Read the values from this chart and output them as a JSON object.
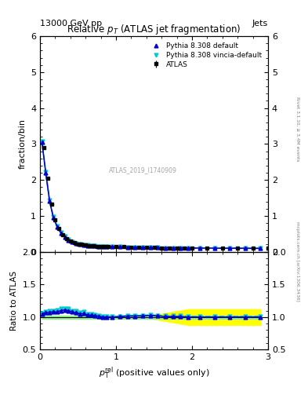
{
  "title": "Relative $p_{T}$ (ATLAS jet fragmentation)",
  "header_left": "13000 GeV pp",
  "header_right": "Jets",
  "ylabel_main": "fraction/bin",
  "ylabel_ratio": "Ratio to ATLAS",
  "watermark": "ATLAS_2019_I1740909",
  "right_label": "Rivet 3.1.10, ≥ 3.4M events",
  "right_label2": "mcplots.cern.ch [arXiv:1306.3436]",
  "atlas_x": [
    0.05,
    0.1,
    0.15,
    0.2,
    0.25,
    0.3,
    0.35,
    0.4,
    0.45,
    0.5,
    0.55,
    0.6,
    0.65,
    0.7,
    0.75,
    0.8,
    0.85,
    0.9,
    1.0,
    1.1,
    1.2,
    1.3,
    1.4,
    1.5,
    1.6,
    1.7,
    1.8,
    1.9,
    2.0,
    2.2,
    2.4,
    2.6,
    2.8,
    3.0
  ],
  "atlas_y": [
    2.9,
    2.05,
    1.32,
    0.88,
    0.65,
    0.47,
    0.37,
    0.3,
    0.26,
    0.22,
    0.2,
    0.18,
    0.17,
    0.16,
    0.155,
    0.15,
    0.148,
    0.145,
    0.14,
    0.135,
    0.13,
    0.125,
    0.12,
    0.115,
    0.112,
    0.11,
    0.108,
    0.106,
    0.105,
    0.102,
    0.1,
    0.098,
    0.096,
    0.094
  ],
  "atlas_yerr": [
    0.05,
    0.03,
    0.02,
    0.015,
    0.01,
    0.008,
    0.006,
    0.005,
    0.004,
    0.003,
    0.003,
    0.003,
    0.003,
    0.003,
    0.003,
    0.003,
    0.003,
    0.003,
    0.003,
    0.003,
    0.003,
    0.003,
    0.003,
    0.003,
    0.003,
    0.003,
    0.003,
    0.003,
    0.003,
    0.004,
    0.005,
    0.006,
    0.007,
    0.008
  ],
  "pythia_default_x": [
    0.025,
    0.075,
    0.125,
    0.175,
    0.225,
    0.275,
    0.325,
    0.375,
    0.425,
    0.475,
    0.525,
    0.575,
    0.625,
    0.675,
    0.725,
    0.775,
    0.825,
    0.875,
    0.95,
    1.05,
    1.15,
    1.25,
    1.35,
    1.45,
    1.55,
    1.65,
    1.75,
    1.85,
    1.95,
    2.1,
    2.3,
    2.5,
    2.7,
    2.9
  ],
  "pythia_default_y": [
    3.05,
    2.2,
    1.42,
    0.95,
    0.7,
    0.52,
    0.41,
    0.33,
    0.28,
    0.235,
    0.21,
    0.19,
    0.175,
    0.165,
    0.158,
    0.152,
    0.148,
    0.145,
    0.14,
    0.136,
    0.132,
    0.127,
    0.122,
    0.118,
    0.114,
    0.111,
    0.109,
    0.107,
    0.105,
    0.102,
    0.1,
    0.098,
    0.096,
    0.094
  ],
  "pythia_vincia_x": [
    0.025,
    0.075,
    0.125,
    0.175,
    0.225,
    0.275,
    0.325,
    0.375,
    0.425,
    0.475,
    0.525,
    0.575,
    0.625,
    0.675,
    0.725,
    0.775,
    0.825,
    0.875,
    0.95,
    1.05,
    1.15,
    1.25,
    1.35,
    1.45,
    1.55,
    1.65,
    1.75,
    1.85,
    1.95,
    2.1,
    2.3,
    2.5,
    2.7,
    2.9
  ],
  "pythia_vincia_y": [
    3.08,
    2.22,
    1.44,
    0.97,
    0.72,
    0.53,
    0.42,
    0.34,
    0.285,
    0.24,
    0.215,
    0.195,
    0.178,
    0.167,
    0.16,
    0.153,
    0.149,
    0.146,
    0.141,
    0.137,
    0.133,
    0.128,
    0.123,
    0.119,
    0.115,
    0.112,
    0.11,
    0.108,
    0.106,
    0.103,
    0.101,
    0.099,
    0.097,
    0.095
  ],
  "ratio_default_y": [
    1.05,
    1.07,
    1.075,
    1.08,
    1.08,
    1.1,
    1.11,
    1.1,
    1.08,
    1.07,
    1.05,
    1.055,
    1.03,
    1.03,
    1.02,
    1.013,
    1.0,
    1.0,
    1.0,
    1.005,
    1.015,
    1.016,
    1.017,
    1.026,
    1.018,
    1.009,
    1.009,
    1.009,
    1.0,
    1.0,
    1.0,
    1.0,
    1.0,
    1.0
  ],
  "ratio_vincia_y": [
    1.062,
    1.082,
    1.09,
    1.1,
    1.108,
    1.128,
    1.135,
    1.133,
    1.096,
    1.091,
    1.075,
    1.083,
    1.048,
    1.044,
    1.032,
    1.02,
    1.007,
    1.007,
    1.007,
    1.015,
    1.023,
    1.024,
    1.025,
    1.035,
    1.027,
    1.018,
    1.018,
    1.018,
    1.01,
    1.01,
    1.01,
    1.01,
    1.01,
    1.01
  ],
  "band_x": [
    0.025,
    0.075,
    0.125,
    0.175,
    0.225,
    0.275,
    0.325,
    0.375,
    0.425,
    0.475,
    0.525,
    0.575,
    0.625,
    0.675,
    0.725,
    0.775,
    0.825,
    0.875,
    0.95,
    1.05,
    1.15,
    1.25,
    1.35,
    1.45,
    1.55,
    1.65,
    1.75,
    1.85,
    1.95,
    2.1,
    2.3,
    2.5,
    2.7,
    2.9
  ],
  "band_upper": [
    1.02,
    1.02,
    1.02,
    1.02,
    1.02,
    1.02,
    1.02,
    1.02,
    1.02,
    1.02,
    1.02,
    1.02,
    1.02,
    1.02,
    1.02,
    1.02,
    1.02,
    1.02,
    1.02,
    1.02,
    1.02,
    1.02,
    1.02,
    1.02,
    1.04,
    1.06,
    1.08,
    1.1,
    1.12,
    1.12,
    1.12,
    1.12,
    1.12,
    1.12
  ],
  "band_lower": [
    0.98,
    0.98,
    0.98,
    0.98,
    0.98,
    0.98,
    0.98,
    0.98,
    0.98,
    0.98,
    0.98,
    0.98,
    0.98,
    0.98,
    0.98,
    0.98,
    0.98,
    0.98,
    0.98,
    0.98,
    0.98,
    0.98,
    0.98,
    0.98,
    0.96,
    0.94,
    0.92,
    0.9,
    0.88,
    0.88,
    0.88,
    0.88,
    0.88,
    0.88
  ],
  "color_atlas": "#000000",
  "color_default": "#0000cc",
  "color_vincia": "#00cccc",
  "color_band_green": "#90ee90",
  "color_band_yellow": "#ffff00",
  "xlim": [
    0,
    3
  ],
  "ylim_main": [
    0,
    6
  ],
  "ylim_ratio": [
    0.5,
    2.0
  ],
  "xticks": [
    0,
    1,
    2,
    3
  ],
  "yticks_main": [
    0,
    1,
    2,
    3,
    4,
    5,
    6
  ],
  "yticks_ratio": [
    0.5,
    1.0,
    1.5,
    2.0
  ]
}
